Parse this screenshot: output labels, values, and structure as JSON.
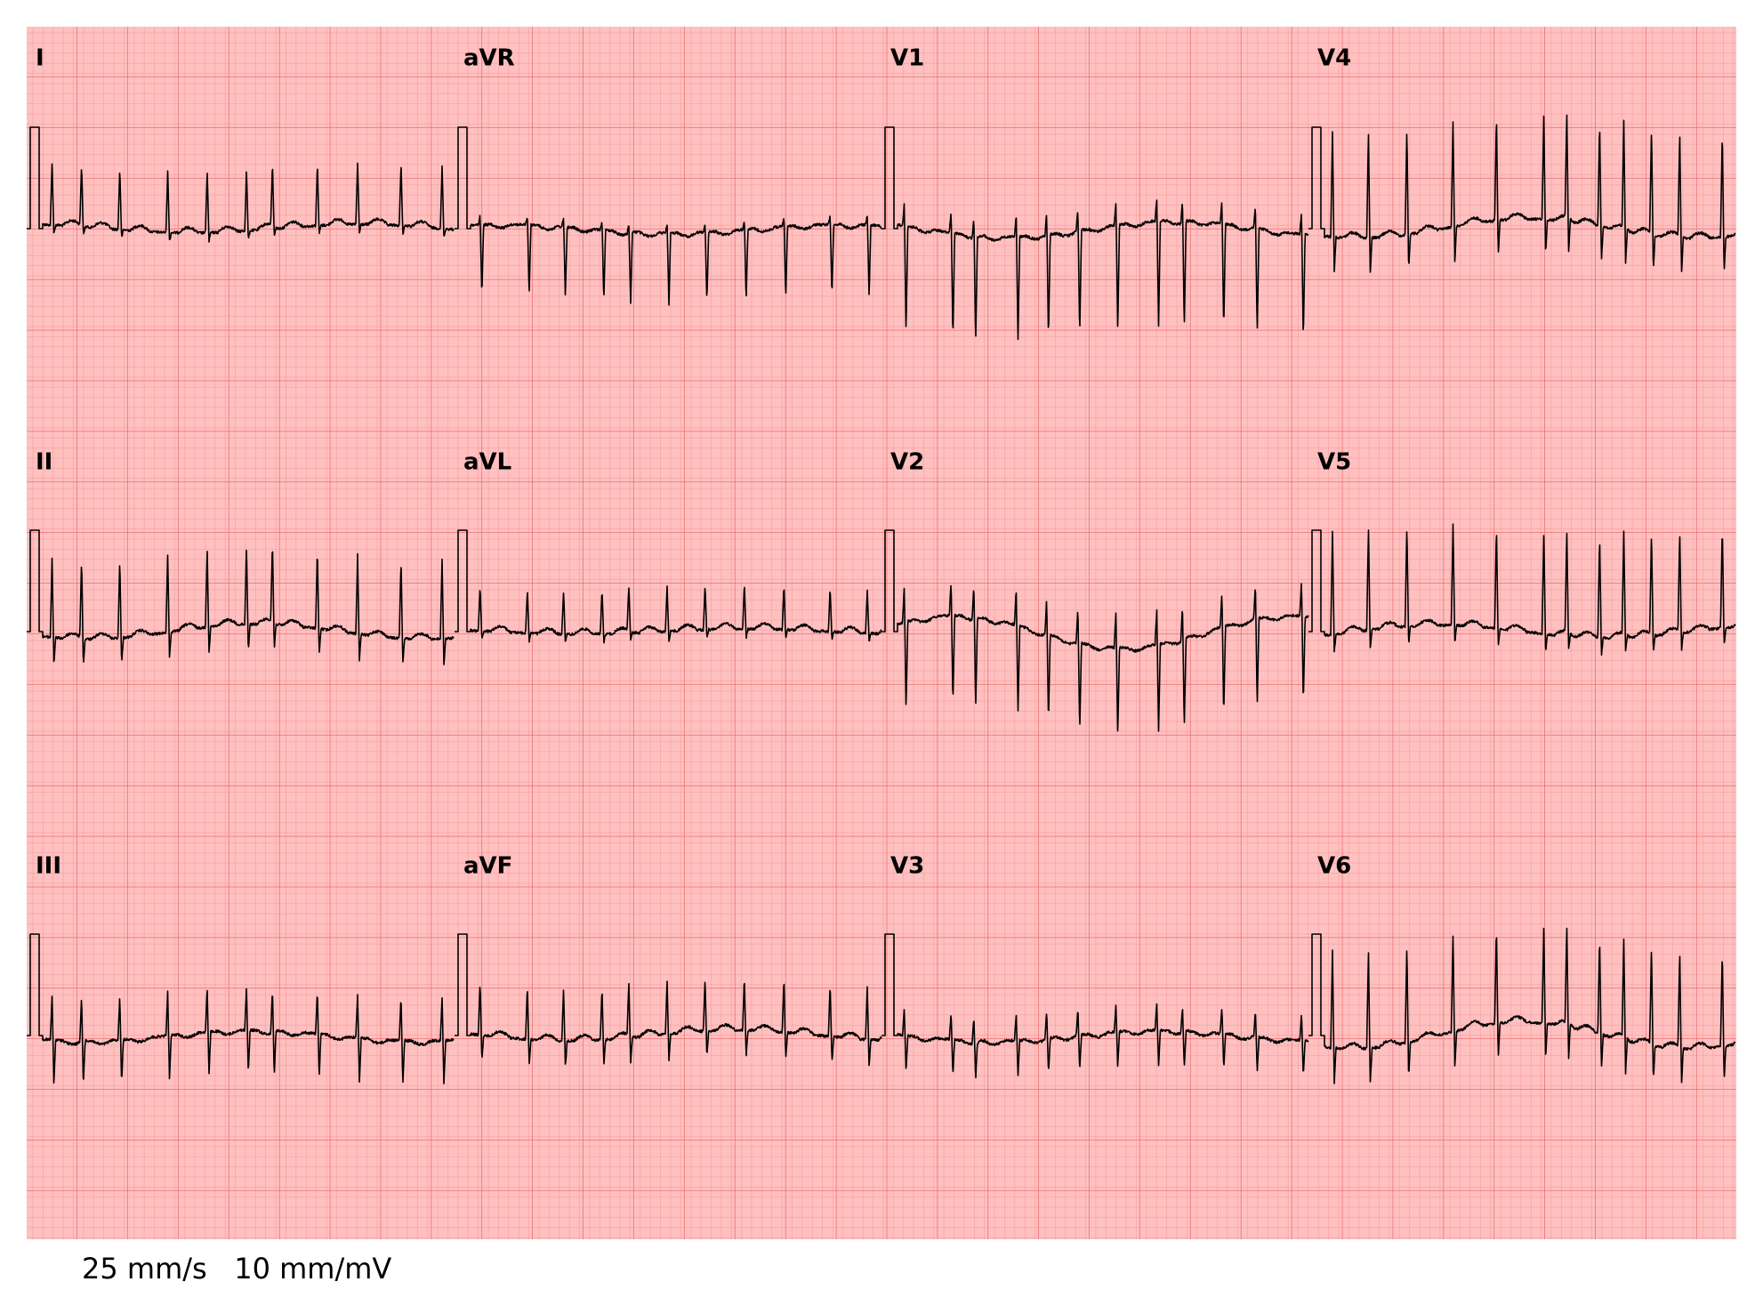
{
  "leads": [
    [
      "I",
      "aVR",
      "V1",
      "V4"
    ],
    [
      "II",
      "aVL",
      "V2",
      "V5"
    ],
    [
      "III",
      "aVF",
      "V3",
      "V6"
    ]
  ],
  "footer": "25 mm/s   10 mm/mV"
}
